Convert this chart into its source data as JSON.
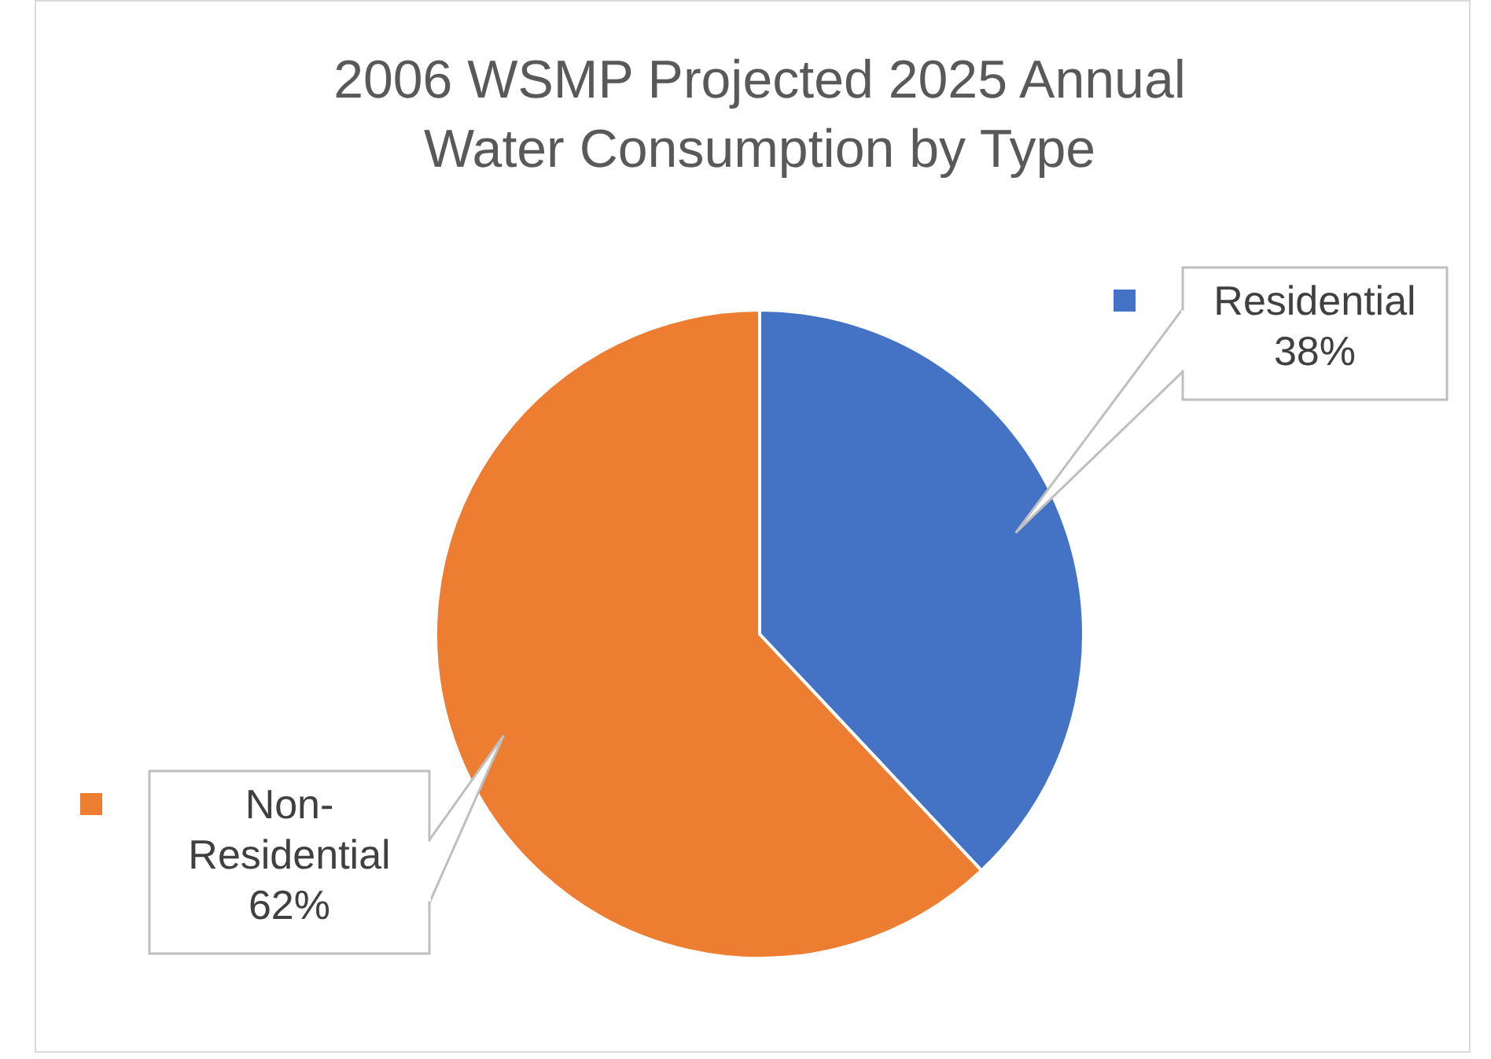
{
  "chart_data": {
    "type": "pie",
    "title": "2006 WSMP Projected 2025 Annual Water Consumption by Type",
    "categories": [
      "Residential",
      "Non-Residential"
    ],
    "values": [
      38,
      62
    ],
    "colors": [
      "#4472c4",
      "#ed7d31"
    ],
    "value_labels": [
      "38%",
      "62%"
    ],
    "legend": "right"
  }
}
